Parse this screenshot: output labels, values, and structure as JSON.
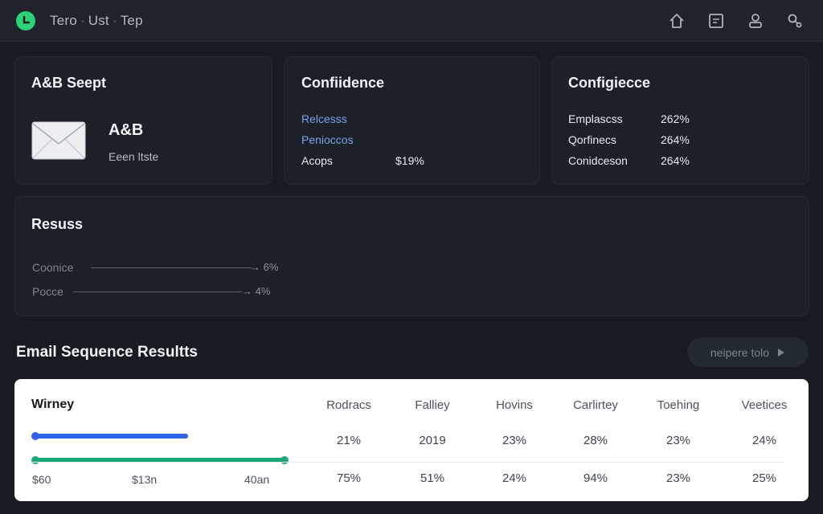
{
  "header": {
    "breadcrumb": [
      "Tero",
      "Ust",
      "Tep"
    ],
    "separator": "·",
    "icons": [
      "home-icon",
      "document-icon",
      "user-icon",
      "search-icon"
    ],
    "accent": "#2fd07a"
  },
  "abtest_card": {
    "title": "A&B Seept",
    "name": "A&B",
    "subtitle": "Eeen ltste",
    "icon": "mail-icon"
  },
  "confidence_card": {
    "title": "Confiidence",
    "rows": [
      {
        "label": "Relcesss",
        "value": ""
      },
      {
        "label": "Penioccos",
        "value": ""
      },
      {
        "label": "Acops",
        "value": "$19%"
      }
    ]
  },
  "configecce_card": {
    "title": "Configiecce",
    "rows": [
      {
        "label": "Emplascss",
        "value": "262%"
      },
      {
        "label": "Qorfinecs",
        "value": "264%"
      },
      {
        "label": "Conidceson",
        "value": "264%"
      }
    ]
  },
  "results_card": {
    "title": "Resuss",
    "rows": [
      {
        "label": "Coonice",
        "value": "6%"
      },
      {
        "label": "Pocce",
        "value": "4%"
      }
    ]
  },
  "sequence_section": {
    "title": "Email Sequence Resultts",
    "button_label": "neipere tolo",
    "button_icon": "play-icon"
  },
  "results_table": {
    "title": "Wirney",
    "columns": [
      "Rodracs",
      "Falliey",
      "Hovins",
      "Carlirtey",
      "Toehing",
      "Veetices"
    ],
    "rows": [
      [
        "21%",
        "2019",
        "23%",
        "28%",
        "23%",
        "24%"
      ],
      [
        "75%",
        "51%",
        "24%",
        "94%",
        "23%",
        "25%"
      ]
    ],
    "bar_labels": [
      "$60",
      "$13n",
      "40an"
    ],
    "bar_blue": "#2f62e6",
    "bar_green": "#1aa879"
  }
}
